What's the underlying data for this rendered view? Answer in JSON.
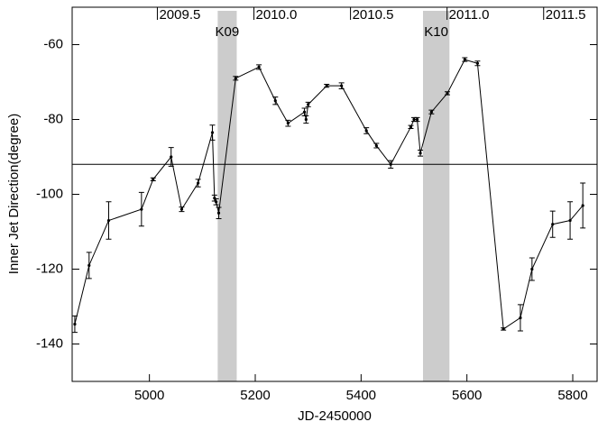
{
  "chart_data": {
    "type": "line",
    "xlabel": "JD-2450000",
    "ylabel": "Inner Jet Direction(degree)",
    "x": [
      4859,
      4886,
      4923,
      4985,
      5007,
      5041,
      5061,
      5092,
      5119,
      5123,
      5126,
      5131,
      5163,
      5207,
      5238,
      5262,
      5293,
      5296,
      5300,
      5335,
      5363,
      5410,
      5429,
      5456,
      5494,
      5500,
      5506,
      5512,
      5533,
      5563,
      5596,
      5620,
      5669,
      5701,
      5723,
      5762,
      5795,
      5819
    ],
    "series": [
      {
        "color": "#000000",
        "values": [
          -134.7,
          -119,
          -107,
          -104,
          -96,
          -90,
          -104,
          -97,
          -83.5,
          -101,
          -102,
          -105,
          -69,
          -66,
          -75,
          -81,
          -78,
          -80,
          -76,
          -71,
          -71,
          -83,
          -87,
          -92,
          -82,
          -80,
          -80,
          -89,
          -78,
          -73,
          -64,
          -65,
          -136,
          -133,
          -120,
          -108,
          -107,
          -103
        ],
        "errors": [
          2.2,
          3.5,
          5,
          4.5,
          0.4,
          2.5,
          0.6,
          1,
          2,
          0.8,
          0.8,
          1.5,
          0.5,
          0.6,
          1,
          0.8,
          1,
          1,
          0.6,
          0.4,
          0.8,
          0.8,
          0.6,
          1,
          0.4,
          0.5,
          0.5,
          0.8,
          0.5,
          0.4,
          0.5,
          0.6,
          0.3,
          3.5,
          3,
          3.5,
          5,
          6
        ]
      }
    ],
    "xlim": [
      4854,
      5846
    ],
    "xticks": [
      5000,
      5200,
      5400,
      5600,
      5800
    ],
    "x2ticks": [
      {
        "value": 5015,
        "label": "2009.5"
      },
      {
        "value": 5197.5,
        "label": "2010.0"
      },
      {
        "value": 5380,
        "label": "2010.5"
      },
      {
        "value": 5562.5,
        "label": "2011.0"
      },
      {
        "value": 5745,
        "label": "2011.5"
      }
    ],
    "ylim": [
      -150,
      -50
    ],
    "yticks": [
      -60,
      -80,
      -100,
      -120,
      -140
    ],
    "hline": -92,
    "bands": [
      {
        "label": "K09",
        "x": [
          5129,
          5165
        ],
        "color": "#cccccc"
      },
      {
        "label": "K10",
        "x": [
          5517,
          5567
        ],
        "color": "#cccccc"
      }
    ]
  }
}
